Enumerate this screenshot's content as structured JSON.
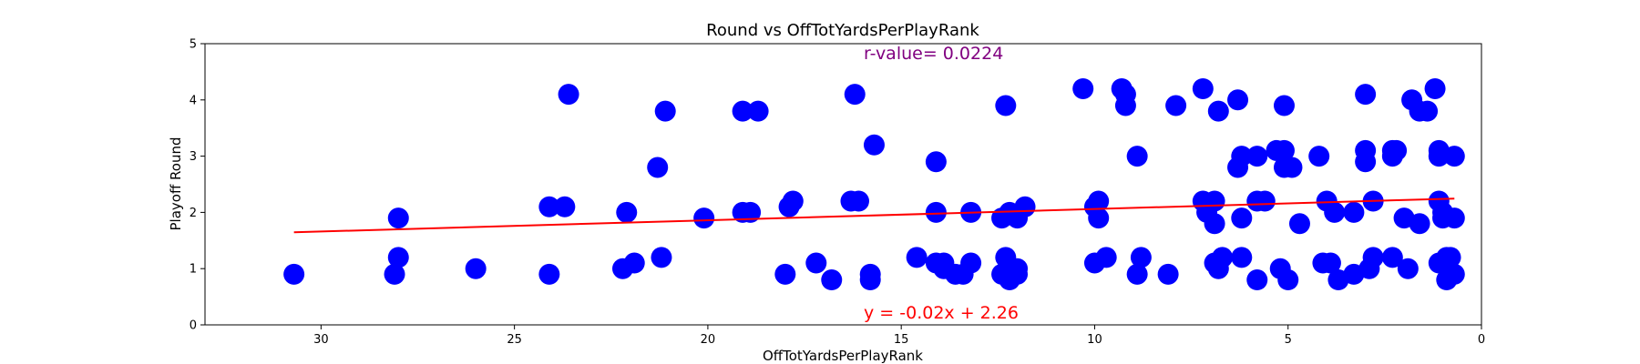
{
  "chart_data": {
    "type": "scatter",
    "title": "Round vs OffTotYardsPerPlayRank",
    "xlabel": "OffTotYardsPerPlayRank",
    "ylabel": "Playoff Round",
    "xlim": [
      33,
      0
    ],
    "ylim": [
      0,
      5
    ],
    "x_inverted": true,
    "xticks": [
      "30",
      "25",
      "20",
      "15",
      "10",
      "5",
      "0"
    ],
    "yticks": [
      "0",
      "1",
      "2",
      "3",
      "4",
      "5"
    ],
    "grid": false,
    "marker_color": "#0000ff",
    "line_color": "#ff0000",
    "annotation_color_r": "#800080",
    "annotation_color_eq": "#ff0000",
    "r_text": "r-value= 0.0224",
    "eq_text": "y = -0.02x + 2.26",
    "regression": {
      "slope": -0.02,
      "intercept": 2.26,
      "x_range": [
        30.7,
        0.7
      ]
    },
    "series": [
      {
        "points": [
          [
            30.7,
            0.9
          ],
          [
            28.1,
            0.9
          ],
          [
            28.0,
            1.2
          ],
          [
            28.0,
            1.9
          ],
          [
            26.0,
            1.0
          ],
          [
            24.1,
            0.9
          ],
          [
            24.1,
            2.1
          ],
          [
            23.7,
            2.1
          ],
          [
            23.6,
            4.1
          ],
          [
            22.2,
            1.0
          ],
          [
            22.1,
            2.0
          ],
          [
            21.9,
            1.1
          ],
          [
            21.2,
            1.2
          ],
          [
            21.3,
            2.8
          ],
          [
            21.1,
            3.8
          ],
          [
            20.1,
            1.9
          ],
          [
            19.1,
            2.0
          ],
          [
            18.9,
            2.0
          ],
          [
            19.1,
            3.8
          ],
          [
            18.7,
            3.8
          ],
          [
            18.0,
            0.9
          ],
          [
            17.9,
            2.1
          ],
          [
            17.8,
            2.2
          ],
          [
            17.2,
            1.1
          ],
          [
            16.8,
            0.8
          ],
          [
            16.3,
            2.2
          ],
          [
            16.1,
            2.2
          ],
          [
            16.2,
            4.1
          ],
          [
            15.8,
            0.9
          ],
          [
            15.8,
            0.8
          ],
          [
            15.7,
            3.2
          ],
          [
            14.6,
            1.2
          ],
          [
            14.1,
            1.1
          ],
          [
            13.9,
            1.1
          ],
          [
            13.9,
            1.0
          ],
          [
            14.1,
            2.0
          ],
          [
            14.1,
            2.9
          ],
          [
            13.6,
            0.9
          ],
          [
            13.4,
            0.9
          ],
          [
            13.2,
            1.1
          ],
          [
            13.2,
            2.0
          ],
          [
            12.4,
            0.9
          ],
          [
            12.3,
            1.2
          ],
          [
            12.2,
            1.0
          ],
          [
            12.0,
            1.0
          ],
          [
            12.2,
            0.8
          ],
          [
            12.0,
            0.9
          ],
          [
            12.4,
            1.9
          ],
          [
            12.2,
            2.0
          ],
          [
            12.0,
            1.9
          ],
          [
            11.8,
            2.1
          ],
          [
            12.3,
            3.9
          ],
          [
            10.3,
            4.2
          ],
          [
            10.0,
            1.1
          ],
          [
            9.7,
            1.2
          ],
          [
            10.0,
            2.1
          ],
          [
            9.9,
            2.2
          ],
          [
            9.9,
            1.9
          ],
          [
            9.3,
            4.2
          ],
          [
            9.2,
            4.1
          ],
          [
            9.2,
            3.9
          ],
          [
            8.9,
            3.0
          ],
          [
            8.9,
            0.9
          ],
          [
            8.8,
            1.2
          ],
          [
            8.1,
            0.9
          ],
          [
            7.9,
            3.9
          ],
          [
            7.2,
            4.2
          ],
          [
            7.2,
            2.2
          ],
          [
            7.1,
            2.0
          ],
          [
            6.9,
            2.2
          ],
          [
            6.9,
            1.8
          ],
          [
            6.9,
            1.1
          ],
          [
            6.8,
            1.0
          ],
          [
            6.7,
            1.2
          ],
          [
            6.8,
            3.8
          ],
          [
            6.3,
            4.0
          ],
          [
            6.2,
            3.0
          ],
          [
            6.3,
            2.8
          ],
          [
            6.2,
            1.9
          ],
          [
            6.2,
            1.2
          ],
          [
            5.8,
            3.0
          ],
          [
            5.8,
            2.2
          ],
          [
            5.6,
            2.2
          ],
          [
            5.8,
            0.8
          ],
          [
            5.3,
            3.1
          ],
          [
            5.1,
            3.1
          ],
          [
            5.1,
            2.8
          ],
          [
            4.9,
            2.8
          ],
          [
            5.2,
            1.0
          ],
          [
            5.0,
            0.8
          ],
          [
            5.1,
            3.9
          ],
          [
            4.7,
            1.8
          ],
          [
            4.2,
            3.0
          ],
          [
            4.1,
            1.1
          ],
          [
            3.9,
            1.1
          ],
          [
            4.0,
            2.2
          ],
          [
            3.8,
            2.0
          ],
          [
            3.7,
            0.8
          ],
          [
            3.3,
            0.9
          ],
          [
            3.3,
            2.0
          ],
          [
            3.0,
            4.1
          ],
          [
            3.0,
            3.1
          ],
          [
            3.0,
            2.9
          ],
          [
            2.9,
            1.0
          ],
          [
            2.8,
            1.2
          ],
          [
            2.8,
            2.2
          ],
          [
            2.3,
            3.0
          ],
          [
            2.3,
            3.1
          ],
          [
            2.2,
            3.1
          ],
          [
            2.3,
            1.2
          ],
          [
            2.0,
            1.9
          ],
          [
            1.9,
            1.0
          ],
          [
            1.6,
            1.8
          ],
          [
            1.8,
            4.0
          ],
          [
            1.6,
            3.8
          ],
          [
            1.2,
            4.2
          ],
          [
            1.1,
            3.1
          ],
          [
            1.1,
            3.0
          ],
          [
            1.1,
            2.2
          ],
          [
            1.0,
            2.0
          ],
          [
            1.0,
            1.9
          ],
          [
            1.1,
            1.1
          ],
          [
            0.9,
            1.2
          ],
          [
            0.8,
            1.2
          ],
          [
            0.9,
            0.8
          ],
          [
            0.7,
            0.9
          ],
          [
            0.7,
            1.9
          ],
          [
            0.7,
            3.0
          ],
          [
            1.4,
            3.8
          ]
        ]
      }
    ]
  }
}
